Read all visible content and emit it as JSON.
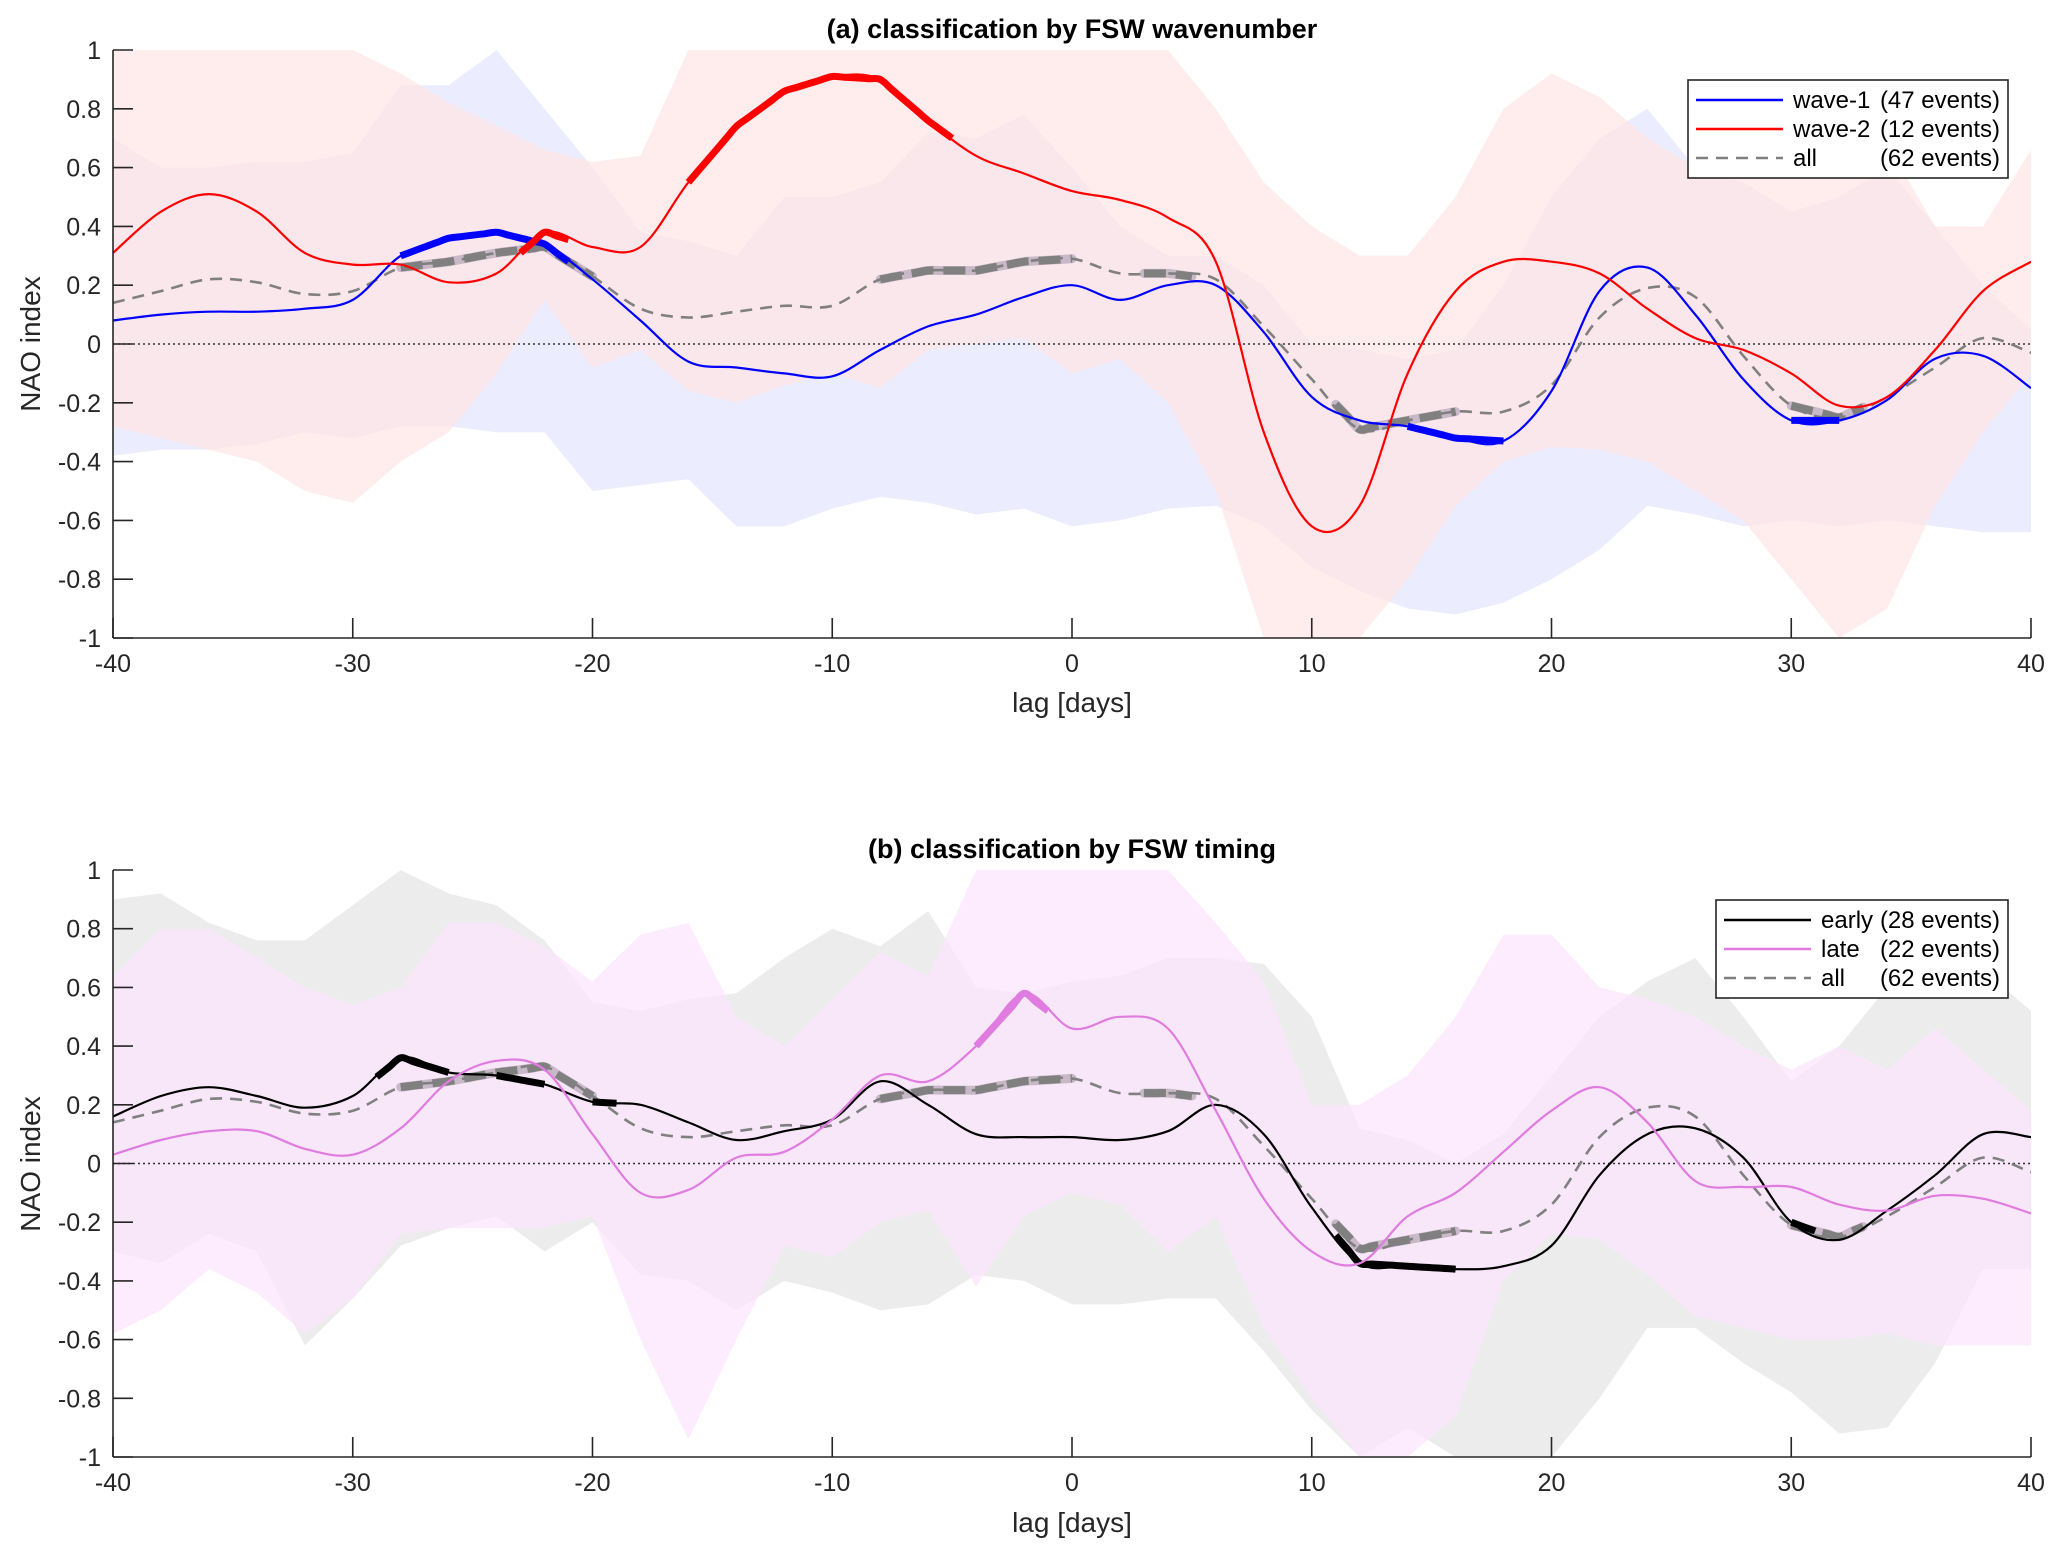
{
  "chart_data": [
    {
      "type": "line",
      "title": "(a) classification by FSW wavenumber",
      "xlabel": "lag [days]",
      "ylabel": "NAO index",
      "xlim": [
        -40,
        40
      ],
      "ylim": [
        -1,
        1
      ],
      "xticks": [
        -40,
        -30,
        -20,
        -10,
        0,
        10,
        20,
        30,
        40
      ],
      "yticks": [
        -1,
        -0.8,
        -0.6,
        -0.4,
        -0.2,
        0,
        0.2,
        0.4,
        0.6,
        0.8,
        1
      ],
      "ytick_labels": [
        "-1",
        "-0.8",
        "-0.6",
        "-0.4",
        "-0.2",
        "0",
        "0.2",
        "0.4",
        "0.6",
        "0.8",
        "1"
      ],
      "grid": false,
      "zero_line": true,
      "legend_position": "top-right",
      "x": [
        -40,
        -38,
        -36,
        -34,
        -32,
        -30,
        -28,
        -26,
        -24,
        -22,
        -20,
        -18,
        -16,
        -14,
        -12,
        -10,
        -8,
        -6,
        -4,
        -2,
        0,
        2,
        4,
        6,
        8,
        10,
        12,
        14,
        16,
        18,
        20,
        22,
        24,
        26,
        28,
        30,
        32,
        34,
        36,
        38,
        40
      ],
      "series": [
        {
          "name": "wave-1",
          "legend_label": "wave-1",
          "legend_count": "(47 events)",
          "color": "#0000ff",
          "style": "solid",
          "values": [
            0.08,
            0.1,
            0.11,
            0.11,
            0.12,
            0.15,
            0.3,
            0.36,
            0.38,
            0.34,
            0.22,
            0.08,
            -0.06,
            -0.08,
            -0.1,
            -0.11,
            -0.02,
            0.06,
            0.1,
            0.16,
            0.2,
            0.15,
            0.2,
            0.2,
            0.04,
            -0.18,
            -0.26,
            -0.28,
            -0.32,
            -0.33,
            -0.16,
            0.18,
            0.26,
            0.1,
            -0.12,
            -0.26,
            -0.26,
            -0.19,
            -0.05,
            -0.04,
            -0.15
          ],
          "band_upper": [
            0.7,
            0.6,
            0.6,
            0.62,
            0.62,
            0.65,
            0.88,
            0.88,
            1.0,
            0.8,
            0.6,
            0.38,
            0.35,
            0.3,
            0.5,
            0.5,
            0.55,
            0.72,
            0.7,
            0.78,
            0.6,
            0.4,
            0.3,
            0.3,
            0.2,
            0.0,
            -0.02,
            -0.05,
            -0.02,
            0.2,
            0.5,
            0.7,
            0.8,
            0.6,
            0.55,
            0.45,
            0.5,
            0.6,
            0.4,
            0.2,
            0.05
          ],
          "band_lower": [
            -0.38,
            -0.36,
            -0.36,
            -0.34,
            -0.3,
            -0.32,
            -0.28,
            -0.28,
            -0.3,
            -0.3,
            -0.5,
            -0.48,
            -0.46,
            -0.62,
            -0.62,
            -0.56,
            -0.52,
            -0.54,
            -0.58,
            -0.56,
            -0.62,
            -0.6,
            -0.56,
            -0.55,
            -0.62,
            -0.76,
            -0.84,
            -0.9,
            -0.92,
            -0.88,
            -0.8,
            -0.7,
            -0.55,
            -0.58,
            -0.62,
            -0.6,
            -0.62,
            -0.6,
            -0.62,
            -0.64,
            -0.64
          ],
          "band_color": "#e6e6ff",
          "significant_segments": [
            [
              -28,
              -21
            ],
            [
              14,
              18
            ],
            [
              30,
              32
            ]
          ]
        },
        {
          "name": "wave-2",
          "legend_label": "wave-2",
          "legend_count": "(12 events)",
          "color": "#ff0000",
          "style": "solid",
          "values": [
            0.31,
            0.45,
            0.51,
            0.45,
            0.31,
            0.27,
            0.27,
            0.21,
            0.24,
            0.38,
            0.33,
            0.33,
            0.55,
            0.74,
            0.86,
            0.91,
            0.9,
            0.76,
            0.64,
            0.58,
            0.52,
            0.49,
            0.43,
            0.28,
            -0.3,
            -0.62,
            -0.55,
            -0.1,
            0.18,
            0.28,
            0.28,
            0.24,
            0.12,
            0.02,
            -0.02,
            -0.1,
            -0.21,
            -0.18,
            -0.02,
            0.18,
            0.28
          ],
          "band_upper": [
            1.0,
            1.0,
            1.0,
            1.0,
            1.0,
            1.0,
            0.92,
            0.82,
            0.74,
            0.66,
            0.62,
            0.64,
            1.0,
            1.0,
            1.0,
            1.0,
            1.0,
            1.0,
            1.0,
            1.0,
            1.0,
            1.0,
            1.0,
            0.8,
            0.55,
            0.4,
            0.3,
            0.3,
            0.5,
            0.8,
            0.92,
            0.84,
            0.7,
            0.6,
            0.6,
            0.62,
            0.7,
            0.68,
            0.4,
            0.4,
            0.66
          ],
          "band_lower": [
            -0.28,
            -0.32,
            -0.36,
            -0.4,
            -0.5,
            -0.54,
            -0.4,
            -0.3,
            -0.1,
            0.15,
            -0.08,
            -0.02,
            -0.16,
            -0.2,
            -0.14,
            -0.1,
            -0.15,
            -0.02,
            0.0,
            0.02,
            -0.1,
            -0.05,
            -0.2,
            -0.5,
            -1.0,
            -1.0,
            -1.0,
            -0.8,
            -0.55,
            -0.4,
            -0.35,
            -0.36,
            -0.4,
            -0.5,
            -0.6,
            -0.8,
            -1.0,
            -0.9,
            -0.55,
            -0.3,
            -0.1
          ],
          "band_color": "#ffe6e6",
          "significant_segments": [
            [
              -23,
              -21
            ],
            [
              -16,
              -5
            ]
          ]
        },
        {
          "name": "all",
          "legend_label": "all",
          "legend_count": "(62 events)",
          "color": "#808080",
          "style": "dashed",
          "values": [
            0.14,
            0.18,
            0.22,
            0.21,
            0.17,
            0.18,
            0.26,
            0.28,
            0.31,
            0.33,
            0.23,
            0.12,
            0.09,
            0.11,
            0.13,
            0.13,
            0.22,
            0.25,
            0.25,
            0.28,
            0.29,
            0.24,
            0.24,
            0.22,
            0.06,
            -0.12,
            -0.29,
            -0.26,
            -0.23,
            -0.23,
            -0.14,
            0.09,
            0.19,
            0.16,
            -0.04,
            -0.21,
            -0.25,
            -0.18,
            -0.08,
            0.02,
            -0.03
          ],
          "significant_segments": [
            [
              -28,
              -20
            ],
            [
              -8,
              0
            ],
            [
              3,
              5
            ],
            [
              11,
              16
            ],
            [
              30,
              33
            ]
          ]
        }
      ]
    },
    {
      "type": "line",
      "title": "(b) classification by FSW timing",
      "xlabel": "lag [days]",
      "ylabel": "NAO index",
      "xlim": [
        -40,
        40
      ],
      "ylim": [
        -1,
        1
      ],
      "xticks": [
        -40,
        -30,
        -20,
        -10,
        0,
        10,
        20,
        30,
        40
      ],
      "yticks": [
        -1,
        -0.8,
        -0.6,
        -0.4,
        -0.2,
        0,
        0.2,
        0.4,
        0.6,
        0.8,
        1
      ],
      "ytick_labels": [
        "-1",
        "-0.8",
        "-0.6",
        "-0.4",
        "-0.2",
        "0",
        "0.2",
        "0.4",
        "0.6",
        "0.8",
        "1"
      ],
      "grid": false,
      "zero_line": true,
      "legend_position": "top-right",
      "x": [
        -40,
        -38,
        -36,
        -34,
        -32,
        -30,
        -28,
        -26,
        -24,
        -22,
        -20,
        -18,
        -16,
        -14,
        -12,
        -10,
        -8,
        -6,
        -4,
        -2,
        0,
        2,
        4,
        6,
        8,
        10,
        12,
        14,
        16,
        18,
        20,
        22,
        24,
        26,
        28,
        30,
        32,
        34,
        36,
        38,
        40
      ],
      "series": [
        {
          "name": "early",
          "legend_label": "early",
          "legend_count": "(28 events)",
          "color": "#000000",
          "style": "solid",
          "values": [
            0.16,
            0.23,
            0.26,
            0.23,
            0.19,
            0.23,
            0.36,
            0.31,
            0.3,
            0.27,
            0.21,
            0.2,
            0.14,
            0.08,
            0.11,
            0.15,
            0.28,
            0.2,
            0.1,
            0.09,
            0.09,
            0.08,
            0.11,
            0.2,
            0.1,
            -0.15,
            -0.34,
            -0.35,
            -0.36,
            -0.35,
            -0.28,
            -0.04,
            0.1,
            0.12,
            0.02,
            -0.2,
            -0.26,
            -0.16,
            -0.04,
            0.1,
            0.09
          ],
          "band_upper": [
            0.9,
            0.92,
            0.82,
            0.76,
            0.76,
            0.88,
            1.0,
            0.92,
            0.88,
            0.76,
            0.55,
            0.52,
            0.56,
            0.58,
            0.7,
            0.8,
            0.74,
            0.86,
            0.6,
            0.58,
            0.62,
            0.64,
            0.7,
            0.7,
            0.68,
            0.5,
            0.12,
            0.08,
            0.0,
            0.1,
            0.3,
            0.5,
            0.62,
            0.7,
            0.5,
            0.28,
            0.4,
            0.6,
            0.6,
            0.66,
            0.52
          ],
          "band_lower": [
            -0.3,
            -0.34,
            -0.24,
            -0.3,
            -0.62,
            -0.46,
            -0.28,
            -0.22,
            -0.18,
            -0.3,
            -0.2,
            -0.38,
            -0.4,
            -0.5,
            -0.4,
            -0.44,
            -0.5,
            -0.48,
            -0.38,
            -0.4,
            -0.48,
            -0.48,
            -0.46,
            -0.46,
            -0.64,
            -0.84,
            -1.0,
            -0.9,
            -1.0,
            -1.0,
            -1.0,
            -0.8,
            -0.56,
            -0.56,
            -0.68,
            -0.78,
            -0.92,
            -0.9,
            -0.68,
            -0.36,
            -0.36
          ],
          "band_color": "#e6e6e6",
          "significant_segments": [
            [
              -29,
              -26
            ],
            [
              -24,
              -22
            ],
            [
              -20,
              -19
            ],
            [
              11,
              16
            ],
            [
              30,
              31
            ]
          ]
        },
        {
          "name": "late",
          "legend_label": "late",
          "legend_count": "(22 events)",
          "color": "#e07be0",
          "style": "solid",
          "values": [
            0.03,
            0.08,
            0.11,
            0.11,
            0.05,
            0.03,
            0.12,
            0.28,
            0.35,
            0.32,
            0.1,
            -0.1,
            -0.09,
            0.02,
            0.04,
            0.15,
            0.3,
            0.28,
            0.4,
            0.58,
            0.46,
            0.5,
            0.46,
            0.18,
            -0.12,
            -0.3,
            -0.34,
            -0.18,
            -0.1,
            0.04,
            0.18,
            0.26,
            0.14,
            -0.06,
            -0.08,
            -0.08,
            -0.14,
            -0.16,
            -0.11,
            -0.12,
            -0.17
          ],
          "band_upper": [
            0.64,
            0.8,
            0.8,
            0.7,
            0.6,
            0.54,
            0.6,
            0.82,
            0.82,
            0.74,
            0.62,
            0.78,
            0.82,
            0.5,
            0.4,
            0.56,
            0.72,
            0.64,
            1.0,
            1.0,
            1.0,
            1.0,
            1.0,
            0.82,
            0.62,
            0.2,
            0.2,
            0.3,
            0.5,
            0.78,
            0.78,
            0.6,
            0.56,
            0.5,
            0.4,
            0.32,
            0.4,
            0.32,
            0.46,
            0.32,
            0.18
          ],
          "band_lower": [
            -0.58,
            -0.5,
            -0.36,
            -0.44,
            -0.58,
            -0.46,
            -0.24,
            -0.22,
            -0.22,
            -0.22,
            -0.18,
            -0.6,
            -0.94,
            -0.6,
            -0.28,
            -0.32,
            -0.2,
            -0.16,
            -0.42,
            -0.18,
            -0.1,
            -0.14,
            -0.3,
            -0.18,
            -0.56,
            -0.8,
            -1.0,
            -1.0,
            -0.86,
            -0.4,
            -0.24,
            -0.26,
            -0.38,
            -0.52,
            -0.56,
            -0.6,
            -0.6,
            -0.58,
            -0.62,
            -0.62,
            -0.62
          ],
          "band_color": "#fce6fc",
          "significant_segments": [
            [
              -4,
              -1
            ]
          ]
        },
        {
          "name": "all",
          "legend_label": "all",
          "legend_count": "(62 events)",
          "color": "#808080",
          "style": "dashed",
          "values": [
            0.14,
            0.18,
            0.22,
            0.21,
            0.17,
            0.18,
            0.26,
            0.28,
            0.31,
            0.33,
            0.23,
            0.12,
            0.09,
            0.11,
            0.13,
            0.13,
            0.22,
            0.25,
            0.25,
            0.28,
            0.29,
            0.24,
            0.24,
            0.22,
            0.06,
            -0.12,
            -0.29,
            -0.26,
            -0.23,
            -0.23,
            -0.14,
            0.09,
            0.19,
            0.16,
            -0.04,
            -0.21,
            -0.25,
            -0.18,
            -0.08,
            0.02,
            -0.03
          ],
          "significant_segments": [
            [
              -28,
              -20
            ],
            [
              -8,
              0
            ],
            [
              3,
              5
            ],
            [
              11,
              16
            ],
            [
              30,
              33
            ]
          ]
        }
      ]
    }
  ]
}
